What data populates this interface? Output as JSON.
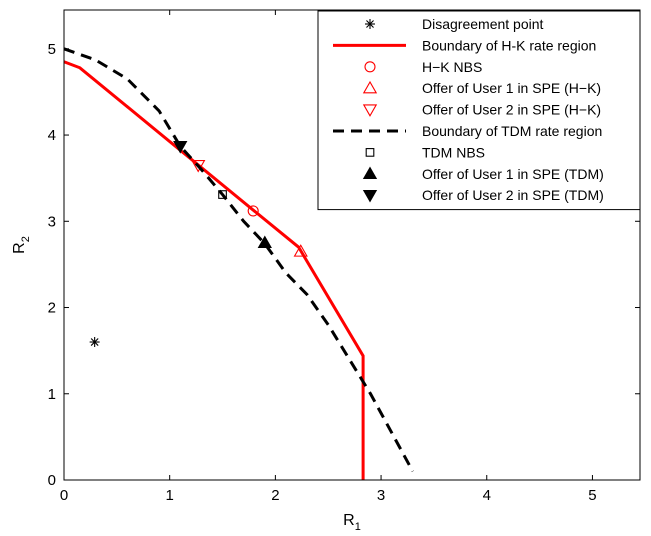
{
  "chart_data": {
    "type": "line",
    "xlabel": {
      "main": "R",
      "sub": "1"
    },
    "ylabel": {
      "main": "R",
      "sub": "2"
    },
    "xlim": [
      0,
      5.45
    ],
    "ylim": [
      0,
      5.45
    ],
    "xticks": [
      0,
      1,
      2,
      3,
      4,
      5
    ],
    "yticks": [
      0,
      1,
      2,
      3,
      4,
      5
    ],
    "grid": false,
    "legend_position": "top-right",
    "series": [
      {
        "key": "disagreement",
        "name": "Disagreement point",
        "kind": "marker",
        "marker": "asterisk",
        "color": "#000000",
        "points": [
          [
            0.29,
            1.6
          ]
        ]
      },
      {
        "key": "hk_boundary",
        "name": "Boundary of H-K rate region",
        "kind": "line",
        "dash": "solid",
        "color": "#ff0000",
        "points": [
          [
            0,
            4.85
          ],
          [
            0.15,
            4.78
          ],
          [
            1.8,
            3.12
          ],
          [
            2.22,
            2.7
          ],
          [
            2.83,
            1.44
          ],
          [
            2.83,
            0
          ]
        ]
      },
      {
        "key": "hk_nbs",
        "name": "H−K NBS",
        "kind": "marker",
        "marker": "circle",
        "color": "#ff0000",
        "points": [
          [
            1.79,
            3.12
          ]
        ]
      },
      {
        "key": "hk_offer1",
        "name": "Offer of User 1 in SPE (H−K)",
        "kind": "marker",
        "marker": "triangle-up-open",
        "color": "#ff0000",
        "points": [
          [
            2.24,
            2.65
          ]
        ]
      },
      {
        "key": "hk_offer2",
        "name": "Offer of User 2 in SPE (H−K)",
        "kind": "marker",
        "marker": "triangle-down-open",
        "color": "#ff0000",
        "points": [
          [
            1.27,
            3.65
          ]
        ]
      },
      {
        "key": "tdm_boundary",
        "name": "Boundary of TDM rate region",
        "kind": "line",
        "dash": "dashed",
        "color": "#000000",
        "points": [
          [
            0,
            5.0
          ],
          [
            0.3,
            4.87
          ],
          [
            0.6,
            4.65
          ],
          [
            0.9,
            4.28
          ],
          [
            1.1,
            3.87
          ],
          [
            1.3,
            3.6
          ],
          [
            1.5,
            3.31
          ],
          [
            1.7,
            3.0
          ],
          [
            1.9,
            2.74
          ],
          [
            2.1,
            2.4
          ],
          [
            2.3,
            2.15
          ],
          [
            2.5,
            1.8
          ],
          [
            2.7,
            1.4
          ],
          [
            2.9,
            1.0
          ],
          [
            3.1,
            0.55
          ],
          [
            3.3,
            0.1
          ]
        ]
      },
      {
        "key": "tdm_nbs",
        "name": "TDM NBS",
        "kind": "marker",
        "marker": "square-open",
        "color": "#000000",
        "points": [
          [
            1.5,
            3.31
          ]
        ]
      },
      {
        "key": "tdm_offer1",
        "name": "Offer of User 1 in SPE (TDM)",
        "kind": "marker",
        "marker": "triangle-up-filled",
        "color": "#000000",
        "points": [
          [
            1.9,
            2.75
          ]
        ]
      },
      {
        "key": "tdm_offer2",
        "name": "Offer of User 2 in SPE (TDM)",
        "kind": "marker",
        "marker": "triangle-down-filled",
        "color": "#000000",
        "points": [
          [
            1.1,
            3.87
          ]
        ]
      }
    ]
  }
}
